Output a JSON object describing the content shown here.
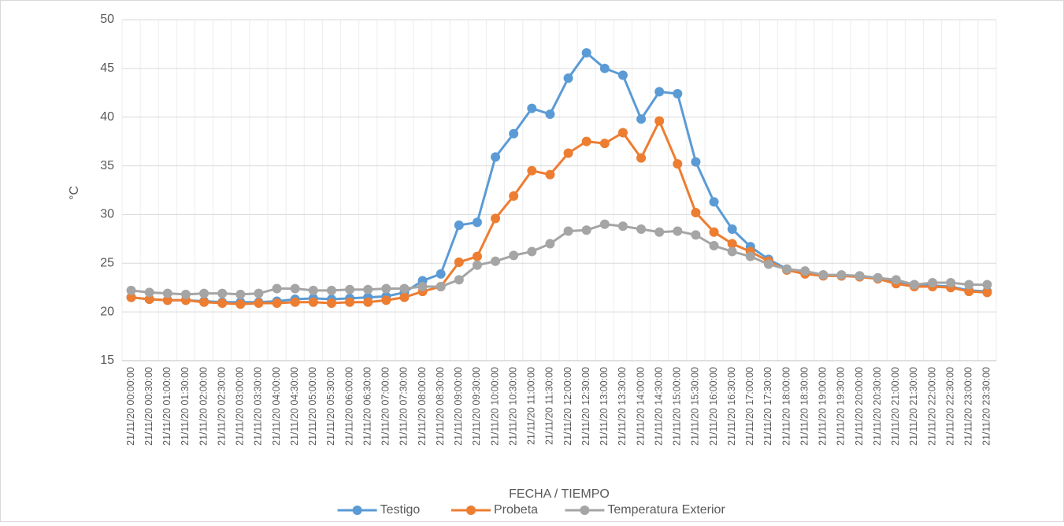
{
  "chart_data": {
    "type": "line",
    "y_label": "°C",
    "x_label": "FECHA / TIEMPO",
    "categories": [
      "21/11/20 00:00:00",
      "21/11/20 00:30:00",
      "21/11/20 01:00:00",
      "21/11/20 01:30:00",
      "21/11/20 02:00:00",
      "21/11/20 02:30:00",
      "21/11/20 03:00:00",
      "21/11/20 03:30:00",
      "21/11/20 04:00:00",
      "21/11/20 04:30:00",
      "21/11/20 05:00:00",
      "21/11/20 05:30:00",
      "21/11/20 06:00:00",
      "21/11/20 06:30:00",
      "21/11/20 07:00:00",
      "21/11/20 07:30:00",
      "21/11/20 08:00:00",
      "21/11/20 08:30:00",
      "21/11/20 09:00:00",
      "21/11/20 09:30:00",
      "21/11/20 10:00:00",
      "21/11/20 10:30:00",
      "21/11/20 11:00:00",
      "21/11/20 11:30:00",
      "21/11/20 12:00:00",
      "21/11/20 12:30:00",
      "21/11/20 13:00:00",
      "21/11/20 13:30:00",
      "21/11/20 14:00:00",
      "21/11/20 14:30:00",
      "21/11/20 15:00:00",
      "21/11/20 15:30:00",
      "21/11/20 16:00:00",
      "21/11/20 16:30:00",
      "21/11/20 17:00:00",
      "21/11/20 17:30:00",
      "21/11/20 18:00:00",
      "21/11/20 18:30:00",
      "21/11/20 19:00:00",
      "21/11/20 19:30:00",
      "21/11/20 20:00:00",
      "21/11/20 20:30:00",
      "21/11/20 21:00:00",
      "21/11/20 21:30:00",
      "21/11/20 22:00:00",
      "21/11/20 22:30:00",
      "21/11/20 23:00:00",
      "21/11/20 23:30:00"
    ],
    "series": [
      {
        "name": "Testigo",
        "color": "#5b9bd5",
        "values": [
          21.5,
          21.3,
          21.2,
          21.2,
          21.1,
          21.0,
          21.0,
          21.0,
          21.1,
          21.3,
          21.4,
          21.3,
          21.4,
          21.5,
          21.6,
          22.0,
          23.2,
          23.9,
          28.9,
          29.2,
          35.9,
          38.3,
          40.9,
          40.3,
          44.0,
          46.6,
          45.0,
          44.3,
          39.8,
          42.6,
          42.4,
          35.4,
          31.3,
          28.5,
          26.7,
          25.4,
          24.4,
          24.0,
          23.8,
          23.7,
          23.7,
          23.5,
          23.0,
          22.8,
          22.7,
          22.6,
          22.2,
          22.1
        ]
      },
      {
        "name": "Probeta",
        "color": "#ed7d31",
        "values": [
          21.5,
          21.3,
          21.2,
          21.2,
          21.0,
          20.9,
          20.8,
          20.9,
          20.9,
          21.0,
          21.0,
          20.9,
          21.0,
          21.0,
          21.2,
          21.5,
          22.1,
          22.6,
          25.1,
          25.7,
          29.6,
          31.9,
          34.5,
          34.1,
          36.3,
          37.5,
          37.3,
          38.4,
          35.8,
          39.6,
          35.2,
          30.2,
          28.2,
          27.0,
          26.2,
          25.2,
          24.3,
          23.9,
          23.7,
          23.7,
          23.6,
          23.4,
          22.9,
          22.6,
          22.6,
          22.5,
          22.1,
          22.0
        ]
      },
      {
        "name": "Temperatura Exterior",
        "color": "#a5a5a5",
        "values": [
          22.2,
          22.0,
          21.9,
          21.8,
          21.9,
          21.9,
          21.8,
          21.9,
          22.4,
          22.4,
          22.2,
          22.2,
          22.3,
          22.3,
          22.4,
          22.4,
          22.6,
          22.6,
          23.3,
          24.8,
          25.2,
          25.8,
          26.2,
          27.0,
          28.3,
          28.4,
          29.0,
          28.8,
          28.5,
          28.2,
          28.3,
          27.9,
          26.8,
          26.2,
          25.7,
          24.9,
          24.4,
          24.2,
          23.8,
          23.8,
          23.7,
          23.5,
          23.3,
          22.8,
          23.0,
          23.0,
          22.8,
          22.8
        ]
      }
    ],
    "ylim": [
      15,
      50
    ],
    "yticks": [
      15,
      20,
      25,
      30,
      35,
      40,
      45,
      50
    ],
    "grid": true,
    "legend": "bottom"
  }
}
